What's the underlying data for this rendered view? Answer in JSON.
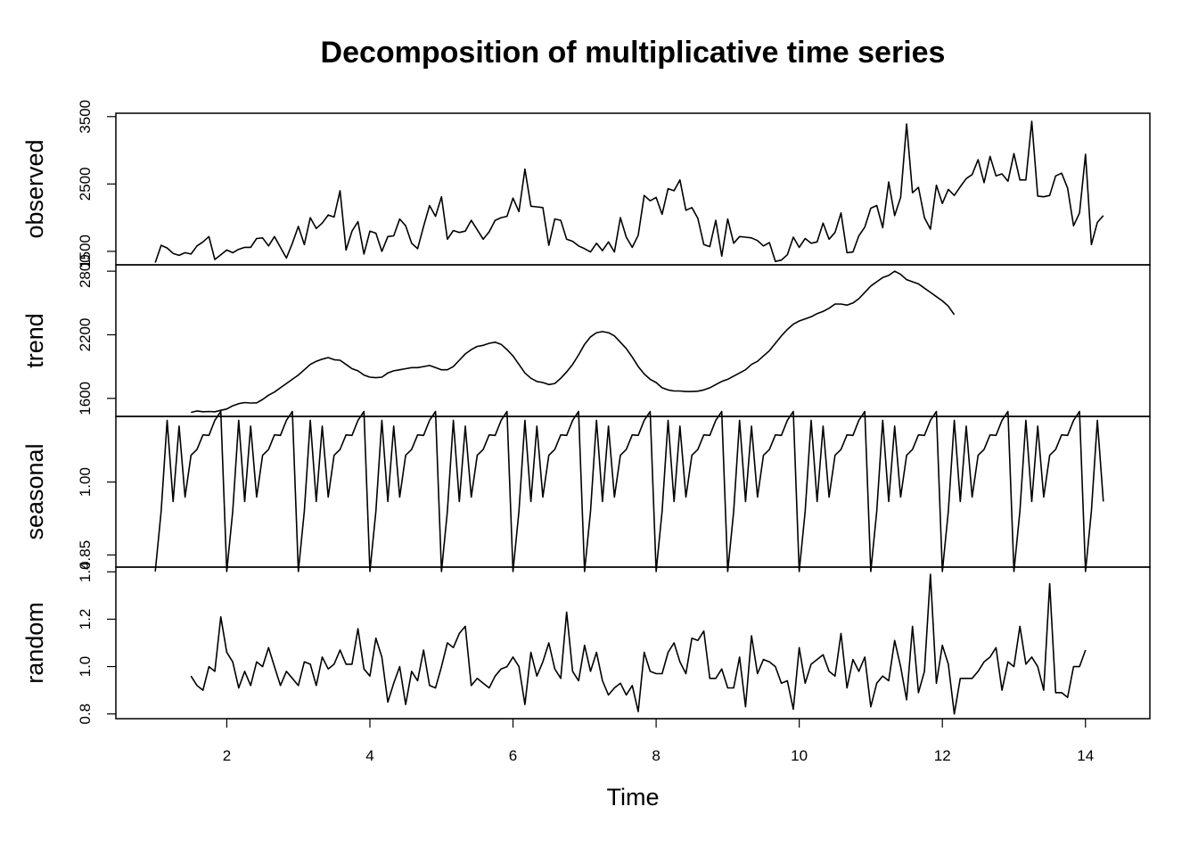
{
  "chart_data": {
    "type": "line",
    "title": "Decomposition of multiplicative time series",
    "xlabel": "Time",
    "xlim": [
      0.45,
      14.9
    ],
    "xticks": [
      2,
      4,
      6,
      8,
      10,
      12,
      14
    ],
    "x_start": 1,
    "frequency": 12,
    "panels": [
      {
        "name": "observed",
        "ylim": [
          1300,
          3550
        ],
        "yticks": [
          "1500",
          "2500",
          "3500"
        ],
        "values": [
          1333,
          1590,
          1550,
          1470,
          1440,
          1480,
          1460,
          1580,
          1640,
          1720,
          1380,
          1450,
          1520,
          1480,
          1530,
          1560,
          1560,
          1690,
          1700,
          1580,
          1720,
          1560,
          1400,
          1620,
          1870,
          1600,
          2000,
          1840,
          1920,
          2040,
          2010,
          2400,
          1520,
          1800,
          1940,
          1460,
          1800,
          1770,
          1500,
          1720,
          1730,
          1980,
          1880,
          1620,
          1540,
          1870,
          2180,
          2020,
          2310,
          1680,
          1810,
          1780,
          1800,
          1960,
          1820,
          1680,
          1790,
          1960,
          2000,
          2020,
          2290,
          2090,
          2720,
          2170,
          2160,
          2150,
          1590,
          1980,
          1960,
          1680,
          1650,
          1580,
          1540,
          1490,
          1620,
          1510,
          1640,
          1490,
          2000,
          1710,
          1560,
          1740,
          2330,
          2250,
          2300,
          2050,
          2430,
          2400,
          2560,
          2110,
          2150,
          1990,
          1600,
          1570,
          1960,
          1430,
          1980,
          1620,
          1720,
          1710,
          1700,
          1660,
          1580,
          1630,
          1350,
          1370,
          1450,
          1710,
          1560,
          1690,
          1620,
          1640,
          1920,
          1680,
          1780,
          2070,
          1480,
          1490,
          1730,
          1860,
          2140,
          2180,
          1850,
          2530,
          2030,
          2300,
          3390,
          2370,
          2450,
          2000,
          1830,
          2480,
          2210,
          2420,
          2330,
          2460,
          2580,
          2640,
          2860,
          2520,
          2910,
          2620,
          2650,
          2540,
          2950,
          2560,
          2560,
          3430,
          2320,
          2310,
          2330,
          2620,
          2660,
          2440,
          1880,
          2070,
          2940,
          1600,
          1930,
          2030
        ]
      },
      {
        "name": "trend",
        "ylim": [
          1430,
          2860
        ],
        "yticks": [
          "1600",
          "2200",
          "2800"
        ],
        "x_offset": 6,
        "values": [
          1468,
          1481,
          1474,
          1476,
          1474,
          1487,
          1500,
          1530,
          1550,
          1560,
          1556,
          1558,
          1590,
          1630,
          1660,
          1700,
          1740,
          1780,
          1820,
          1870,
          1920,
          1950,
          1970,
          1985,
          1965,
          1960,
          1920,
          1880,
          1860,
          1820,
          1800,
          1795,
          1800,
          1840,
          1860,
          1870,
          1880,
          1890,
          1890,
          1900,
          1910,
          1890,
          1870,
          1870,
          1900,
          1960,
          2020,
          2060,
          2090,
          2100,
          2120,
          2130,
          2110,
          2060,
          2000,
          1920,
          1840,
          1790,
          1760,
          1750,
          1730,
          1740,
          1790,
          1850,
          1920,
          2010,
          2110,
          2180,
          2220,
          2230,
          2220,
          2190,
          2130,
          2070,
          1990,
          1900,
          1830,
          1780,
          1750,
          1700,
          1680,
          1670,
          1670,
          1665,
          1665,
          1668,
          1680,
          1700,
          1730,
          1760,
          1780,
          1810,
          1840,
          1870,
          1920,
          1950,
          2000,
          2050,
          2120,
          2190,
          2250,
          2300,
          2330,
          2350,
          2370,
          2400,
          2420,
          2450,
          2490,
          2490,
          2480,
          2500,
          2540,
          2600,
          2660,
          2700,
          2740,
          2760,
          2800,
          2770,
          2720,
          2700,
          2680,
          2640,
          2600,
          2560,
          2520,
          2470,
          2390
        ]
      },
      {
        "name": "seasonal",
        "ylim": [
          0.825,
          1.135
        ],
        "yticks": [
          "0.85",
          "1.00"
        ],
        "values": [
          0.816,
          0.94,
          1.127,
          0.96,
          1.115,
          0.969,
          1.055,
          1.067,
          1.097,
          1.096,
          1.127,
          1.145
        ]
      },
      {
        "name": "random",
        "ylim": [
          0.78,
          1.42
        ],
        "yticks": [
          "0.8",
          "1.0",
          "1.2",
          "1.4"
        ],
        "x_offset": 6,
        "values": [
          0.96,
          0.92,
          0.9,
          1.0,
          0.98,
          1.21,
          1.06,
          1.02,
          0.91,
          0.98,
          0.92,
          1.02,
          1.0,
          1.08,
          1.0,
          0.92,
          0.98,
          0.95,
          0.92,
          1.02,
          1.01,
          0.92,
          1.04,
          0.99,
          1.01,
          1.07,
          1.01,
          1.01,
          1.16,
          0.99,
          0.96,
          1.12,
          1.04,
          0.85,
          0.93,
          1.0,
          0.84,
          0.98,
          0.94,
          1.07,
          0.92,
          0.91,
          1.0,
          1.1,
          1.08,
          1.14,
          1.17,
          0.92,
          0.95,
          0.93,
          0.91,
          0.96,
          0.99,
          1.0,
          1.04,
          1.0,
          0.84,
          1.06,
          0.96,
          1.02,
          1.1,
          0.99,
          0.95,
          1.23,
          0.98,
          0.94,
          1.09,
          0.98,
          1.06,
          0.94,
          0.88,
          0.91,
          0.93,
          0.88,
          0.92,
          0.81,
          1.06,
          0.98,
          0.97,
          0.97,
          1.06,
          1.1,
          1.02,
          0.97,
          1.12,
          1.11,
          1.15,
          0.95,
          0.95,
          0.99,
          0.91,
          0.91,
          1.04,
          0.83,
          1.13,
          0.97,
          1.03,
          1.02,
          1.0,
          0.93,
          0.94,
          0.82,
          1.08,
          0.93,
          1.01,
          1.03,
          1.05,
          0.98,
          0.96,
          1.14,
          0.91,
          1.03,
          0.98,
          1.04,
          0.83,
          0.93,
          0.96,
          0.94,
          1.11,
          1.0,
          0.86,
          1.17,
          0.89,
          0.98,
          1.39,
          0.93,
          1.09,
          1.01,
          0.8,
          0.95,
          0.95,
          0.95,
          0.98,
          1.02,
          1.04,
          1.08,
          0.9,
          1.02,
          1.0,
          1.17,
          1.01,
          1.04,
          1.0,
          0.9,
          1.35,
          0.89,
          0.89,
          0.87,
          1.0,
          1.0,
          1.07
        ]
      }
    ]
  }
}
